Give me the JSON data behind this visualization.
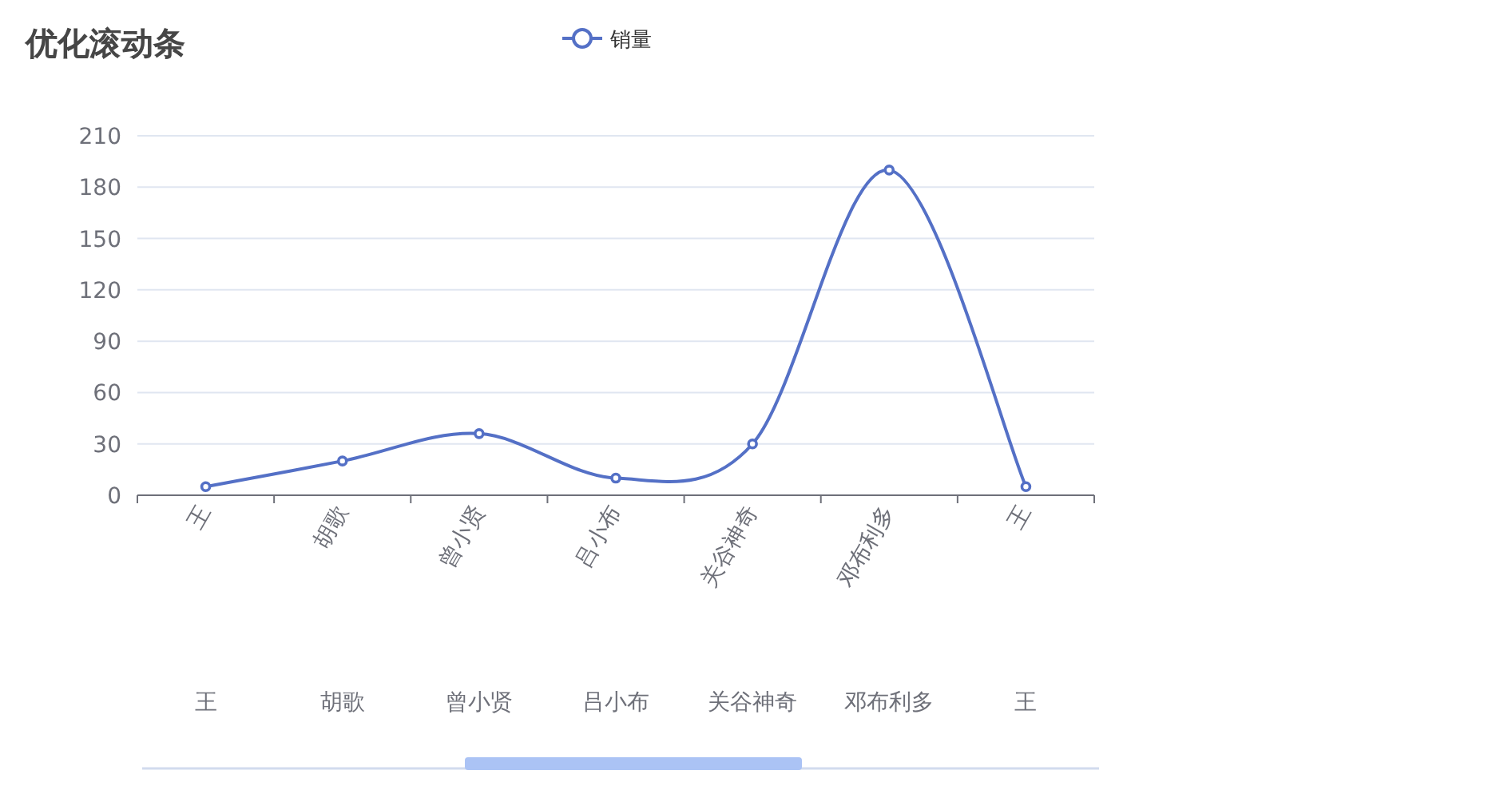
{
  "chart_data": {
    "type": "line",
    "title": "优化滚动条",
    "categories": [
      "王",
      "胡歌",
      "曾小贤",
      "吕小布",
      "关谷神奇",
      "邓布利多",
      "王"
    ],
    "series": [
      {
        "name": "销量",
        "color": "#5470c6",
        "values": [
          5,
          20,
          36,
          10,
          30,
          190,
          5
        ]
      }
    ],
    "ylim": [
      0,
      210
    ],
    "yticks": [
      0,
      30,
      60,
      90,
      120,
      150,
      180,
      210
    ],
    "grid": "y",
    "legend": "top",
    "marker": "circle",
    "line_style": "solid"
  }
}
